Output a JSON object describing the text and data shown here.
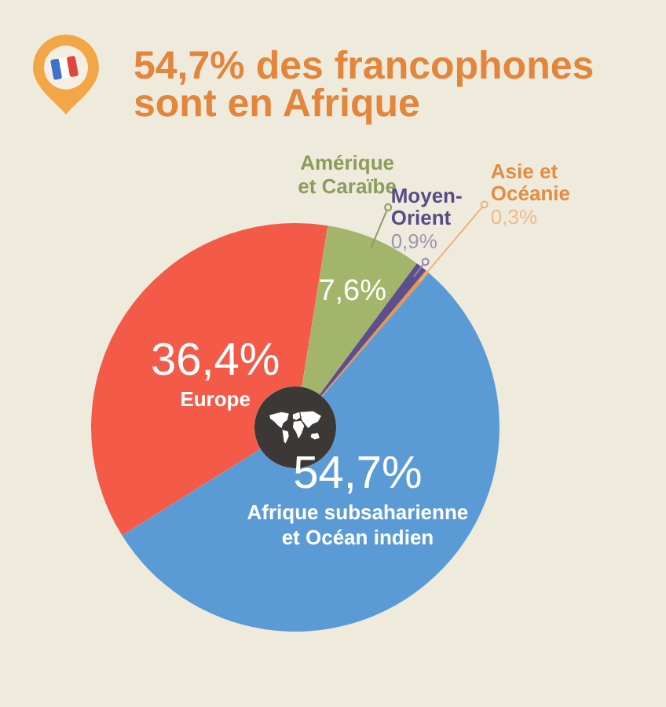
{
  "chart_data": {
    "type": "donut",
    "title": "54,7% des francophones sont en Afrique",
    "categories": [
      "Europe",
      "Amérique et Caraïbe",
      "Moyen-Orient",
      "Asie et Océanie",
      "Afrique subsaharienne et Océan indien"
    ],
    "values": [
      36.4,
      7.6,
      0.9,
      0.3,
      54.7
    ],
    "colors": [
      "#f35a48",
      "#a3b56a",
      "#5d4f8e",
      "#ee9445",
      "#5b9bd5"
    ],
    "value_labels": [
      "36,4%",
      "7,6%",
      "0,9%",
      "0,3%",
      "54,7%"
    ]
  }
}
